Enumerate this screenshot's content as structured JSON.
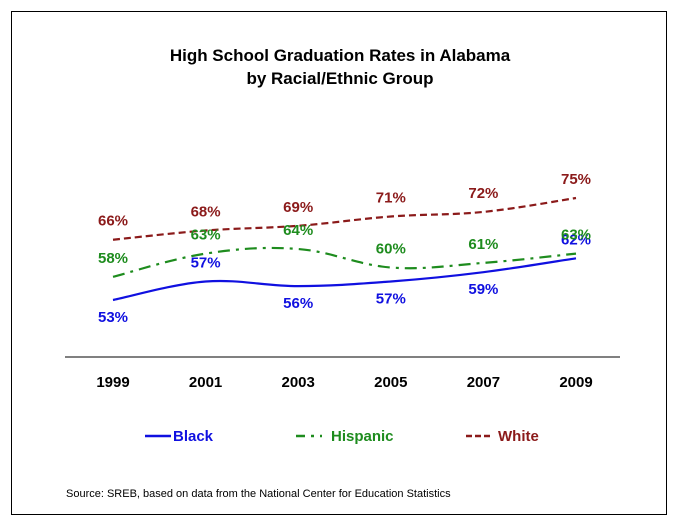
{
  "chart_data": {
    "type": "line",
    "title": "High School Graduation Rates in Alabama",
    "subtitle": "by Racial/Ethnic Group",
    "x": [
      "1999",
      "2001",
      "2003",
      "2005",
      "2007",
      "2009"
    ],
    "ylim": [
      40,
      85
    ],
    "grid": false,
    "legend_position": "bottom",
    "series": [
      {
        "name": "Black",
        "values": [
          53,
          57,
          56,
          57,
          59,
          62
        ],
        "labels": [
          "53%",
          "57%",
          "56%",
          "57%",
          "59%",
          "62%"
        ],
        "color": "#1010e0",
        "dash": "solid"
      },
      {
        "name": "Hispanic",
        "values": [
          58,
          63,
          64,
          60,
          61,
          63
        ],
        "labels": [
          "58%",
          "63%",
          "64%",
          "60%",
          "61%",
          "63%"
        ],
        "color": "#1e8c1e",
        "dash": "dashdot"
      },
      {
        "name": "White",
        "values": [
          66,
          68,
          69,
          71,
          72,
          75
        ],
        "labels": [
          "66%",
          "68%",
          "69%",
          "71%",
          "72%",
          "75%"
        ],
        "color": "#8b1a1a",
        "dash": "dashed"
      }
    ],
    "source": "Source: SREB, based on data from the National Center for Education Statistics"
  }
}
